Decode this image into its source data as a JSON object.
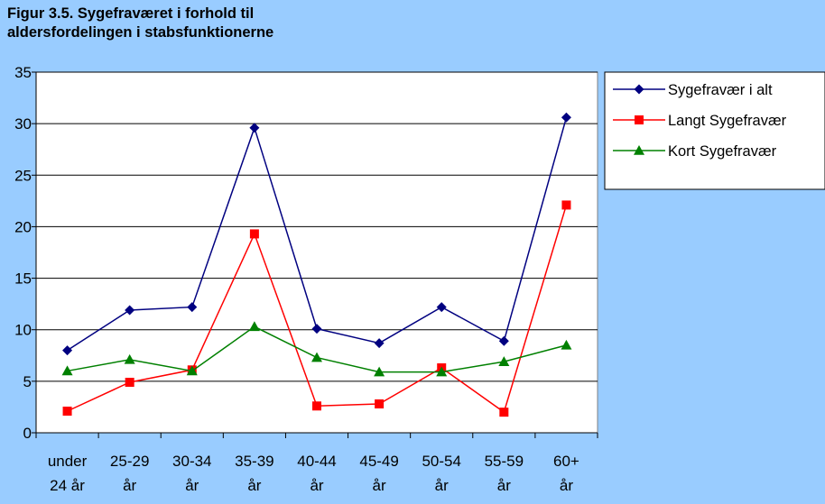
{
  "chart_data": {
    "type": "line",
    "title_lines": [
      "Figur 3.5. Sygefraværet i forhold til",
      "aldersfordelingen i stabsfunktionerne"
    ],
    "xlabel": "",
    "ylabel": "",
    "categories": [
      [
        "under",
        "24 år"
      ],
      [
        "25-29",
        "år"
      ],
      [
        "30-34",
        "år"
      ],
      [
        "35-39",
        "år"
      ],
      [
        "40-44",
        "år"
      ],
      [
        "45-49",
        "år"
      ],
      [
        "50-54",
        "år"
      ],
      [
        "55-59",
        "år"
      ],
      [
        "60+",
        "år"
      ]
    ],
    "ylim": [
      0,
      35
    ],
    "yticks": [
      0,
      5,
      10,
      15,
      20,
      25,
      30,
      35
    ],
    "grid": true,
    "legend_position": "right",
    "series": [
      {
        "name": "Sygefravær i alt",
        "color": "#000080",
        "marker": "diamond",
        "values": [
          8.0,
          11.9,
          12.2,
          29.6,
          10.1,
          8.7,
          12.2,
          8.9,
          30.6
        ]
      },
      {
        "name": "Langt Sygefravær",
        "color": "#ff0000",
        "marker": "square",
        "values": [
          2.1,
          4.9,
          6.1,
          19.3,
          2.6,
          2.8,
          6.3,
          2.0,
          22.1
        ]
      },
      {
        "name": "Kort Sygefravær",
        "color": "#008000",
        "marker": "triangle",
        "values": [
          6.0,
          7.1,
          6.0,
          10.3,
          7.3,
          5.9,
          5.9,
          6.9,
          8.5
        ]
      }
    ]
  }
}
